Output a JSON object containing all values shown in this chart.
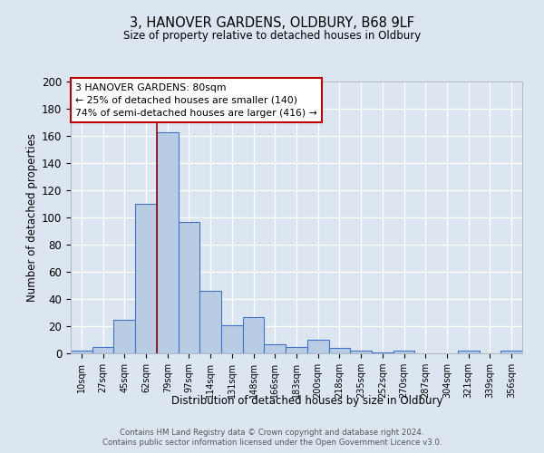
{
  "title1": "3, HANOVER GARDENS, OLDBURY, B68 9LF",
  "title2": "Size of property relative to detached houses in Oldbury",
  "xlabel": "Distribution of detached houses by size in Oldbury",
  "ylabel": "Number of detached properties",
  "footnote1": "Contains HM Land Registry data © Crown copyright and database right 2024.",
  "footnote2": "Contains public sector information licensed under the Open Government Licence v3.0.",
  "categories": [
    "10sqm",
    "27sqm",
    "45sqm",
    "62sqm",
    "79sqm",
    "97sqm",
    "114sqm",
    "131sqm",
    "148sqm",
    "166sqm",
    "183sqm",
    "200sqm",
    "218sqm",
    "235sqm",
    "252sqm",
    "270sqm",
    "287sqm",
    "304sqm",
    "321sqm",
    "339sqm",
    "356sqm"
  ],
  "values": [
    2,
    5,
    25,
    110,
    163,
    97,
    46,
    21,
    27,
    7,
    5,
    10,
    4,
    2,
    1,
    2,
    0,
    0,
    2,
    0,
    2
  ],
  "bar_color": "#b8cce4",
  "bar_edge_color": "#4472c4",
  "bg_color": "#dce6f1",
  "grid_color": "#ffffff",
  "vline_index": 4,
  "vline_color": "#9b0000",
  "annotation_line1": "3 HANOVER GARDENS: 80sqm",
  "annotation_line2": "← 25% of detached houses are smaller (140)",
  "annotation_line3": "74% of semi-detached houses are larger (416) →",
  "annotation_box_color": "#ffffff",
  "annotation_box_edge": "#c00000",
  "ylim": [
    0,
    200
  ],
  "yticks": [
    0,
    20,
    40,
    60,
    80,
    100,
    120,
    140,
    160,
    180,
    200
  ]
}
